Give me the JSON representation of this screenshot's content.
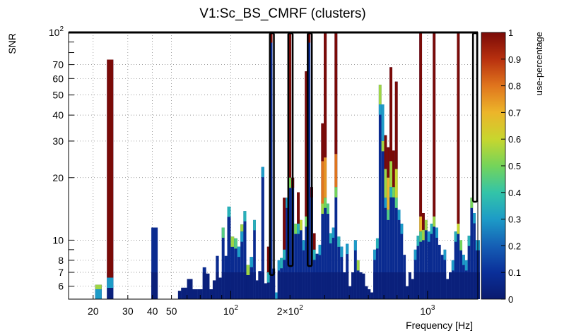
{
  "chart_data": {
    "type": "heatmap",
    "title": "V1:Sc_BS_CMRF (clusters)",
    "xlabel": "Frequency [Hz]",
    "ylabel": "SNR",
    "xscale": "log",
    "yscale": "log",
    "xlim": [
      15,
      1800
    ],
    "ylim": [
      5.2,
      100
    ],
    "grid": true,
    "x_ticks": [
      {
        "value": 20,
        "label": "20"
      },
      {
        "value": 30,
        "label": "30"
      },
      {
        "value": 40,
        "label": "40"
      },
      {
        "value": 50,
        "label": "50"
      },
      {
        "value": 100,
        "label": "10",
        "sup": "2"
      },
      {
        "value": 200,
        "label": "2×10",
        "sup": "2"
      },
      {
        "value": 1000,
        "label": "10",
        "sup": "3"
      }
    ],
    "y_ticks": [
      {
        "value": 6,
        "label": "6"
      },
      {
        "value": 7,
        "label": "7"
      },
      {
        "value": 8,
        "label": "8"
      },
      {
        "value": 10,
        "label": "10"
      },
      {
        "value": 20,
        "label": "20"
      },
      {
        "value": 30,
        "label": "30"
      },
      {
        "value": 40,
        "label": "40"
      },
      {
        "value": 50,
        "label": "50"
      },
      {
        "value": 60,
        "label": "60"
      },
      {
        "value": 70,
        "label": "70"
      },
      {
        "value": 100,
        "label": "10",
        "sup": "2"
      }
    ],
    "colorbar": {
      "label": "use-percentage",
      "range": [
        0,
        1
      ],
      "ticks": [
        "0",
        "0.1",
        "0.2",
        "0.3",
        "0.4",
        "0.5",
        "0.6",
        "0.7",
        "0.8",
        "0.9",
        "1"
      ]
    },
    "columns": [
      {
        "f": 20.5,
        "top": 6.1,
        "segs": [
          [
            6.1,
            0.55
          ],
          [
            5.8,
            0.3
          ]
        ]
      },
      {
        "f": 23.5,
        "top": 74,
        "segs": [
          [
            74,
            1.0
          ],
          [
            6.6,
            0.3
          ]
        ]
      },
      {
        "f": 39.5,
        "top": 11.5,
        "segs": []
      },
      {
        "f": 54,
        "top": 5.7,
        "segs": []
      },
      {
        "f": 56,
        "top": 5.9,
        "segs": []
      },
      {
        "f": 60,
        "top": 6.5,
        "segs": []
      },
      {
        "f": 64,
        "top": 5.8,
        "segs": []
      },
      {
        "f": 68,
        "top": 5.8,
        "segs": []
      },
      {
        "f": 72,
        "top": 7.4,
        "segs": []
      },
      {
        "f": 75,
        "top": 6.9,
        "segs": []
      },
      {
        "f": 78,
        "top": 5.8,
        "segs": []
      },
      {
        "f": 81,
        "top": 6.4,
        "segs": []
      },
      {
        "f": 84,
        "top": 8.4,
        "segs": []
      },
      {
        "f": 87,
        "top": 6.6,
        "segs": []
      },
      {
        "f": 90,
        "top": 11.5,
        "segs": [
          [
            11.5,
            0.45
          ]
        ]
      },
      {
        "f": 93,
        "top": 8.4,
        "segs": []
      },
      {
        "f": 96,
        "top": 14.5,
        "segs": [
          [
            14.5,
            0.35
          ]
        ]
      },
      {
        "f": 100,
        "top": 10.4,
        "segs": [
          [
            10.4,
            0.55
          ]
        ]
      },
      {
        "f": 104,
        "top": 10.2,
        "segs": [
          [
            10.2,
            0.45
          ]
        ]
      },
      {
        "f": 108,
        "top": 9.3,
        "segs": [
          [
            9.3,
            0.3
          ]
        ]
      },
      {
        "f": 112,
        "top": 11.9,
        "segs": [
          [
            11.9,
            0.55
          ],
          [
            11,
            0.3
          ]
        ]
      },
      {
        "f": 116,
        "top": 13.8,
        "segs": [
          [
            13.8,
            0.35
          ]
        ]
      },
      {
        "f": 120,
        "top": 7.6,
        "segs": [
          [
            7.6,
            0.55
          ]
        ]
      },
      {
        "f": 125,
        "top": 8.3,
        "segs": [
          [
            8.3,
            0.3
          ]
        ]
      },
      {
        "f": 130,
        "top": 12.5,
        "segs": [
          [
            12.5,
            0.35
          ]
        ]
      },
      {
        "f": 134,
        "top": 6.4,
        "segs": []
      },
      {
        "f": 138,
        "top": 7.1,
        "segs": []
      },
      {
        "f": 143,
        "top": 22.5,
        "segs": [
          [
            22.5,
            0.3
          ]
        ]
      },
      {
        "f": 148,
        "top": 6.2,
        "segs": []
      },
      {
        "f": 153,
        "top": 9.3,
        "segs": [
          [
            9.3,
            1.0
          ],
          [
            7.0,
            0.35
          ]
        ]
      },
      {
        "f": 158,
        "top": 100,
        "segs": [
          [
            100,
            1.0
          ]
        ]
      },
      {
        "f": 163,
        "top": 7.3,
        "segs": []
      },
      {
        "f": 168,
        "top": 5.6,
        "segs": [
          [
            5.6,
            0.3
          ]
        ]
      },
      {
        "f": 173,
        "top": 8.0,
        "segs": [
          [
            8.0,
            0.3
          ]
        ]
      },
      {
        "f": 178,
        "top": 8.2,
        "segs": [
          [
            8.2,
            0.35
          ]
        ]
      },
      {
        "f": 184,
        "top": 16.0,
        "segs": [
          [
            16.0,
            1.0
          ],
          [
            9.0,
            0.35
          ]
        ]
      },
      {
        "f": 190,
        "top": 16.0,
        "segs": [
          [
            16.0,
            0.3
          ]
        ]
      },
      {
        "f": 196,
        "top": 100,
        "segs": [
          [
            100,
            1.0
          ],
          [
            20,
            0.5
          ]
        ]
      },
      {
        "f": 203,
        "top": 20.0,
        "segs": [
          [
            20,
            1.0
          ]
        ]
      },
      {
        "f": 210,
        "top": 12.0,
        "segs": [
          [
            12,
            0.5
          ]
        ]
      },
      {
        "f": 217,
        "top": 17.0,
        "segs": [
          [
            17,
            1.0
          ],
          [
            12,
            0.35
          ]
        ]
      },
      {
        "f": 224,
        "top": 12.5,
        "segs": [
          [
            12.5,
            0.6
          ]
        ]
      },
      {
        "f": 231,
        "top": 10.0,
        "segs": [
          [
            10.0,
            0.3
          ]
        ]
      },
      {
        "f": 238,
        "top": 65.0,
        "segs": [
          [
            65,
            1.0
          ],
          [
            13,
            0.5
          ]
        ]
      },
      {
        "f": 246,
        "top": 100,
        "segs": [
          [
            100,
            1.0
          ]
        ]
      },
      {
        "f": 254,
        "top": 18.0,
        "segs": [
          [
            18,
            1.0
          ]
        ]
      },
      {
        "f": 262,
        "top": 10.8,
        "segs": [
          [
            10.8,
            1.0
          ],
          [
            9,
            0.35
          ]
        ]
      },
      {
        "f": 270,
        "top": 8.6,
        "segs": []
      },
      {
        "f": 279,
        "top": 9.5,
        "segs": [
          [
            9.5,
            0.3
          ]
        ]
      },
      {
        "f": 288,
        "top": 36.5,
        "segs": [
          [
            36.5,
            1.0
          ],
          [
            24,
            0.8
          ],
          [
            15,
            0.55
          ]
        ]
      },
      {
        "f": 297,
        "top": 100,
        "segs": [
          [
            100,
            1.0
          ],
          [
            25,
            0.75
          ],
          [
            16,
            0.5
          ]
        ]
      },
      {
        "f": 307,
        "top": 15.0,
        "segs": [
          [
            15,
            0.45
          ]
        ]
      },
      {
        "f": 317,
        "top": 10.8,
        "segs": [
          [
            10.8,
            0.35
          ]
        ]
      },
      {
        "f": 327,
        "top": 11.5,
        "segs": [
          [
            11.5,
            0.3
          ]
        ]
      },
      {
        "f": 337,
        "top": 100,
        "segs": [
          [
            100,
            1.0
          ],
          [
            26,
            0.8
          ],
          [
            18,
            0.5
          ]
        ]
      },
      {
        "f": 348,
        "top": 10.4,
        "segs": [
          [
            10.4,
            0.35
          ]
        ]
      },
      {
        "f": 360,
        "top": 9.3,
        "segs": [
          [
            9.3,
            0.3
          ]
        ]
      },
      {
        "f": 372,
        "top": 7.0,
        "segs": []
      },
      {
        "f": 384,
        "top": 9.6,
        "segs": [
          [
            9.6,
            0.3
          ]
        ]
      },
      {
        "f": 397,
        "top": 6.0,
        "segs": []
      },
      {
        "f": 410,
        "top": 7.0,
        "segs": []
      },
      {
        "f": 423,
        "top": 10.0,
        "segs": [
          [
            10.0,
            0.3
          ]
        ]
      },
      {
        "f": 437,
        "top": 8.0,
        "segs": [
          [
            8.0,
            0.55
          ]
        ]
      },
      {
        "f": 451,
        "top": 7.0,
        "segs": []
      },
      {
        "f": 466,
        "top": 6.9,
        "segs": []
      },
      {
        "f": 481,
        "top": 6.0,
        "segs": []
      },
      {
        "f": 497,
        "top": 5.8,
        "segs": []
      },
      {
        "f": 513,
        "top": 5.6,
        "segs": []
      },
      {
        "f": 530,
        "top": 9.0,
        "segs": [
          [
            9.0,
            0.3
          ]
        ]
      },
      {
        "f": 547,
        "top": 10.2,
        "segs": [
          [
            10.2,
            0.35
          ]
        ]
      },
      {
        "f": 565,
        "top": 56,
        "segs": [
          [
            56,
            0.55
          ],
          [
            45,
            0.3
          ]
        ]
      },
      {
        "f": 583,
        "top": 45,
        "segs": [
          [
            45,
            0.3
          ],
          [
            30,
            0.55
          ]
        ]
      },
      {
        "f": 602,
        "top": 32,
        "segs": [
          [
            32,
            1.0
          ],
          [
            22,
            0.55
          ],
          [
            16,
            0.3
          ]
        ]
      },
      {
        "f": 621,
        "top": 28,
        "segs": [
          [
            28,
            1.0
          ],
          [
            20,
            0.7
          ],
          [
            14,
            0.45
          ]
        ]
      },
      {
        "f": 641,
        "top": 68,
        "segs": [
          [
            68,
            1.0
          ],
          [
            24,
            0.55
          ],
          [
            18,
            0.35
          ]
        ]
      },
      {
        "f": 662,
        "top": 27,
        "segs": [
          [
            27,
            1.0
          ],
          [
            18,
            0.5
          ]
        ]
      },
      {
        "f": 683,
        "top": 58,
        "segs": [
          [
            58,
            1.0
          ],
          [
            22,
            0.6
          ],
          [
            16,
            0.45
          ]
        ]
      },
      {
        "f": 705,
        "top": 14,
        "segs": [
          [
            14,
            0.3
          ]
        ]
      },
      {
        "f": 728,
        "top": 12,
        "segs": [
          [
            12,
            0.3
          ]
        ]
      },
      {
        "f": 751,
        "top": 8.5,
        "segs": []
      },
      {
        "f": 775,
        "top": 6.0,
        "segs": []
      },
      {
        "f": 800,
        "top": 7.0,
        "segs": []
      },
      {
        "f": 826,
        "top": 6.5,
        "segs": []
      },
      {
        "f": 853,
        "top": 9.0,
        "segs": [
          [
            9.0,
            0.3
          ]
        ]
      },
      {
        "f": 880,
        "top": 10.5,
        "segs": [
          [
            10.5,
            0.35
          ]
        ]
      },
      {
        "f": 908,
        "top": 100,
        "segs": [
          [
            100,
            1.0
          ],
          [
            13,
            0.7
          ],
          [
            11,
            0.45
          ]
        ]
      },
      {
        "f": 937,
        "top": 13.5,
        "segs": [
          [
            13.5,
            1.0
          ],
          [
            11.2,
            0.55
          ]
        ]
      },
      {
        "f": 967,
        "top": 12.5,
        "segs": [
          [
            12.5,
            0.55
          ]
        ]
      },
      {
        "f": 998,
        "top": 11.0,
        "segs": [
          [
            11.0,
            0.3
          ]
        ]
      },
      {
        "f": 1030,
        "top": 12.0,
        "segs": [
          [
            12.0,
            0.35
          ]
        ]
      },
      {
        "f": 1063,
        "top": 100,
        "segs": [
          [
            100,
            1.0
          ],
          [
            13,
            0.55
          ]
        ]
      },
      {
        "f": 1097,
        "top": 11.5,
        "segs": [
          [
            11.5,
            0.3
          ]
        ]
      },
      {
        "f": 1132,
        "top": 9.5,
        "segs": []
      },
      {
        "f": 1168,
        "top": 8.5,
        "segs": []
      },
      {
        "f": 1205,
        "top": 9.0,
        "segs": [
          [
            9.0,
            0.3
          ]
        ]
      },
      {
        "f": 1243,
        "top": 6.5,
        "segs": []
      },
      {
        "f": 1283,
        "top": 7.0,
        "segs": []
      },
      {
        "f": 1324,
        "top": 8.0,
        "segs": [
          [
            8.0,
            0.3
          ]
        ]
      },
      {
        "f": 1366,
        "top": 11.0,
        "segs": [
          [
            11.0,
            0.35
          ]
        ]
      },
      {
        "f": 1410,
        "top": 100,
        "segs": [
          [
            100,
            1.0
          ],
          [
            12,
            0.6
          ]
        ]
      },
      {
        "f": 1455,
        "top": 10.0,
        "segs": [
          [
            10.0,
            0.5
          ]
        ]
      },
      {
        "f": 1501,
        "top": 8.5,
        "segs": [
          [
            8.5,
            0.3
          ]
        ]
      },
      {
        "f": 1549,
        "top": 8.0,
        "segs": [
          [
            8.0,
            0.3
          ]
        ]
      },
      {
        "f": 1598,
        "top": 10.5,
        "segs": [
          [
            10.5,
            0.35
          ]
        ]
      },
      {
        "f": 1649,
        "top": 16.0,
        "segs": [
          [
            16.0,
            0.5
          ]
        ]
      },
      {
        "f": 1701,
        "top": 13.5,
        "segs": [
          [
            13.5,
            0.3
          ]
        ]
      },
      {
        "f": 1755,
        "top": 10.0,
        "segs": [
          [
            10.0,
            0.3
          ]
        ]
      }
    ],
    "highlight_boxes": [
      {
        "f0": 158,
        "f1": 163,
        "snr_min": 6.8,
        "snr_max": 100
      },
      {
        "f0": 196,
        "f1": 203,
        "snr_min": 7.5,
        "snr_max": 100
      },
      {
        "f0": 246,
        "f1": 254,
        "snr_min": 7.5,
        "snr_max": 100
      },
      {
        "f0": 1701,
        "f1": 1755,
        "snr_min": 15.3,
        "snr_max": 100
      }
    ]
  }
}
